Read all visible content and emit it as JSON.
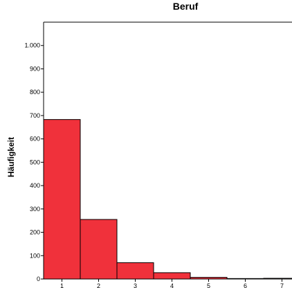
{
  "chart_data": {
    "type": "bar",
    "title": "Beruf",
    "xlabel": "",
    "ylabel": "Häufigkeit",
    "categories": [
      "1",
      "2",
      "3",
      "4",
      "5",
      "6",
      "7"
    ],
    "values": [
      683,
      255,
      70,
      27,
      7,
      2,
      3
    ],
    "ylim": [
      0,
      1100
    ],
    "yticks": [
      0,
      100,
      200,
      300,
      400,
      500,
      600,
      700,
      800,
      900,
      1000
    ],
    "ytick_labels": [
      "0",
      "100",
      "200",
      "300",
      "400",
      "500",
      "600",
      "700",
      "800",
      "900",
      "1.000"
    ],
    "grid": false,
    "legend": "none",
    "colors": {
      "bar_fill": "#f0313b",
      "bar_stroke": "#000000",
      "axis": "#000000"
    }
  }
}
